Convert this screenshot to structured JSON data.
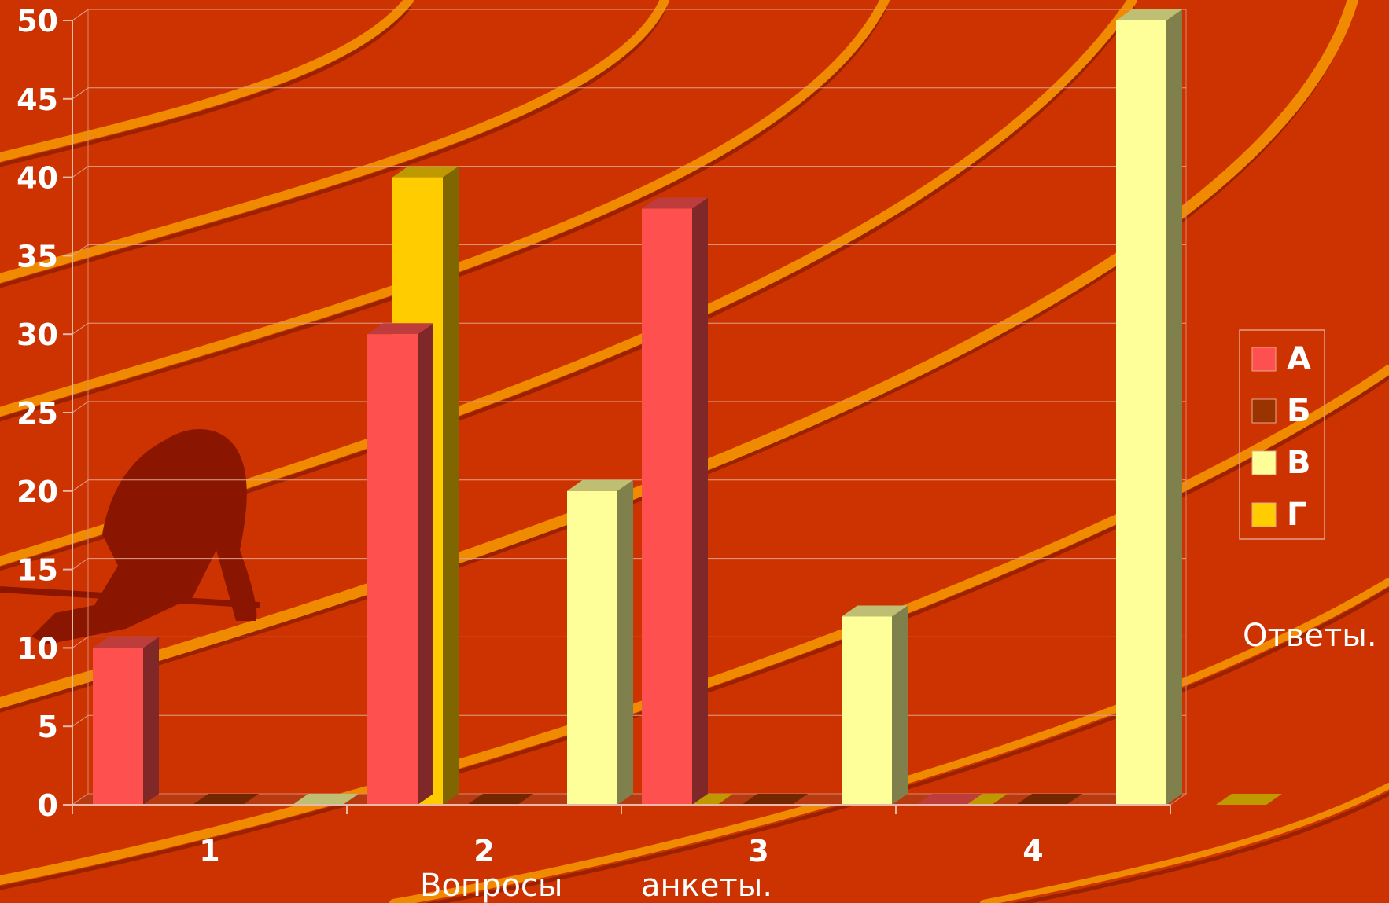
{
  "chart_data": {
    "type": "bar",
    "categories": [
      "1",
      "2",
      "3",
      "4"
    ],
    "series": [
      {
        "name": "А",
        "values": [
          10,
          30,
          38,
          0
        ]
      },
      {
        "name": "Б",
        "values": [
          0,
          0,
          0,
          0
        ]
      },
      {
        "name": "В",
        "values": [
          0,
          20,
          12,
          50
        ]
      },
      {
        "name": "Г",
        "values": [
          40,
          0,
          0,
          0
        ]
      }
    ],
    "xlabel_parts": [
      "Вопросы",
      "анкеты."
    ],
    "ylabel": "Ответы.",
    "ylim": [
      0,
      50
    ],
    "yticks": [
      0,
      5,
      10,
      15,
      20,
      25,
      30,
      35,
      40,
      45,
      50
    ],
    "grid": true,
    "legend_position": "right",
    "colors": {
      "background": "#cc3300",
      "swoosh": "#f08a00",
      "А": "#ff5050",
      "Б": "#993300",
      "В": "#ffff99",
      "Г": "#ffcc00"
    }
  }
}
